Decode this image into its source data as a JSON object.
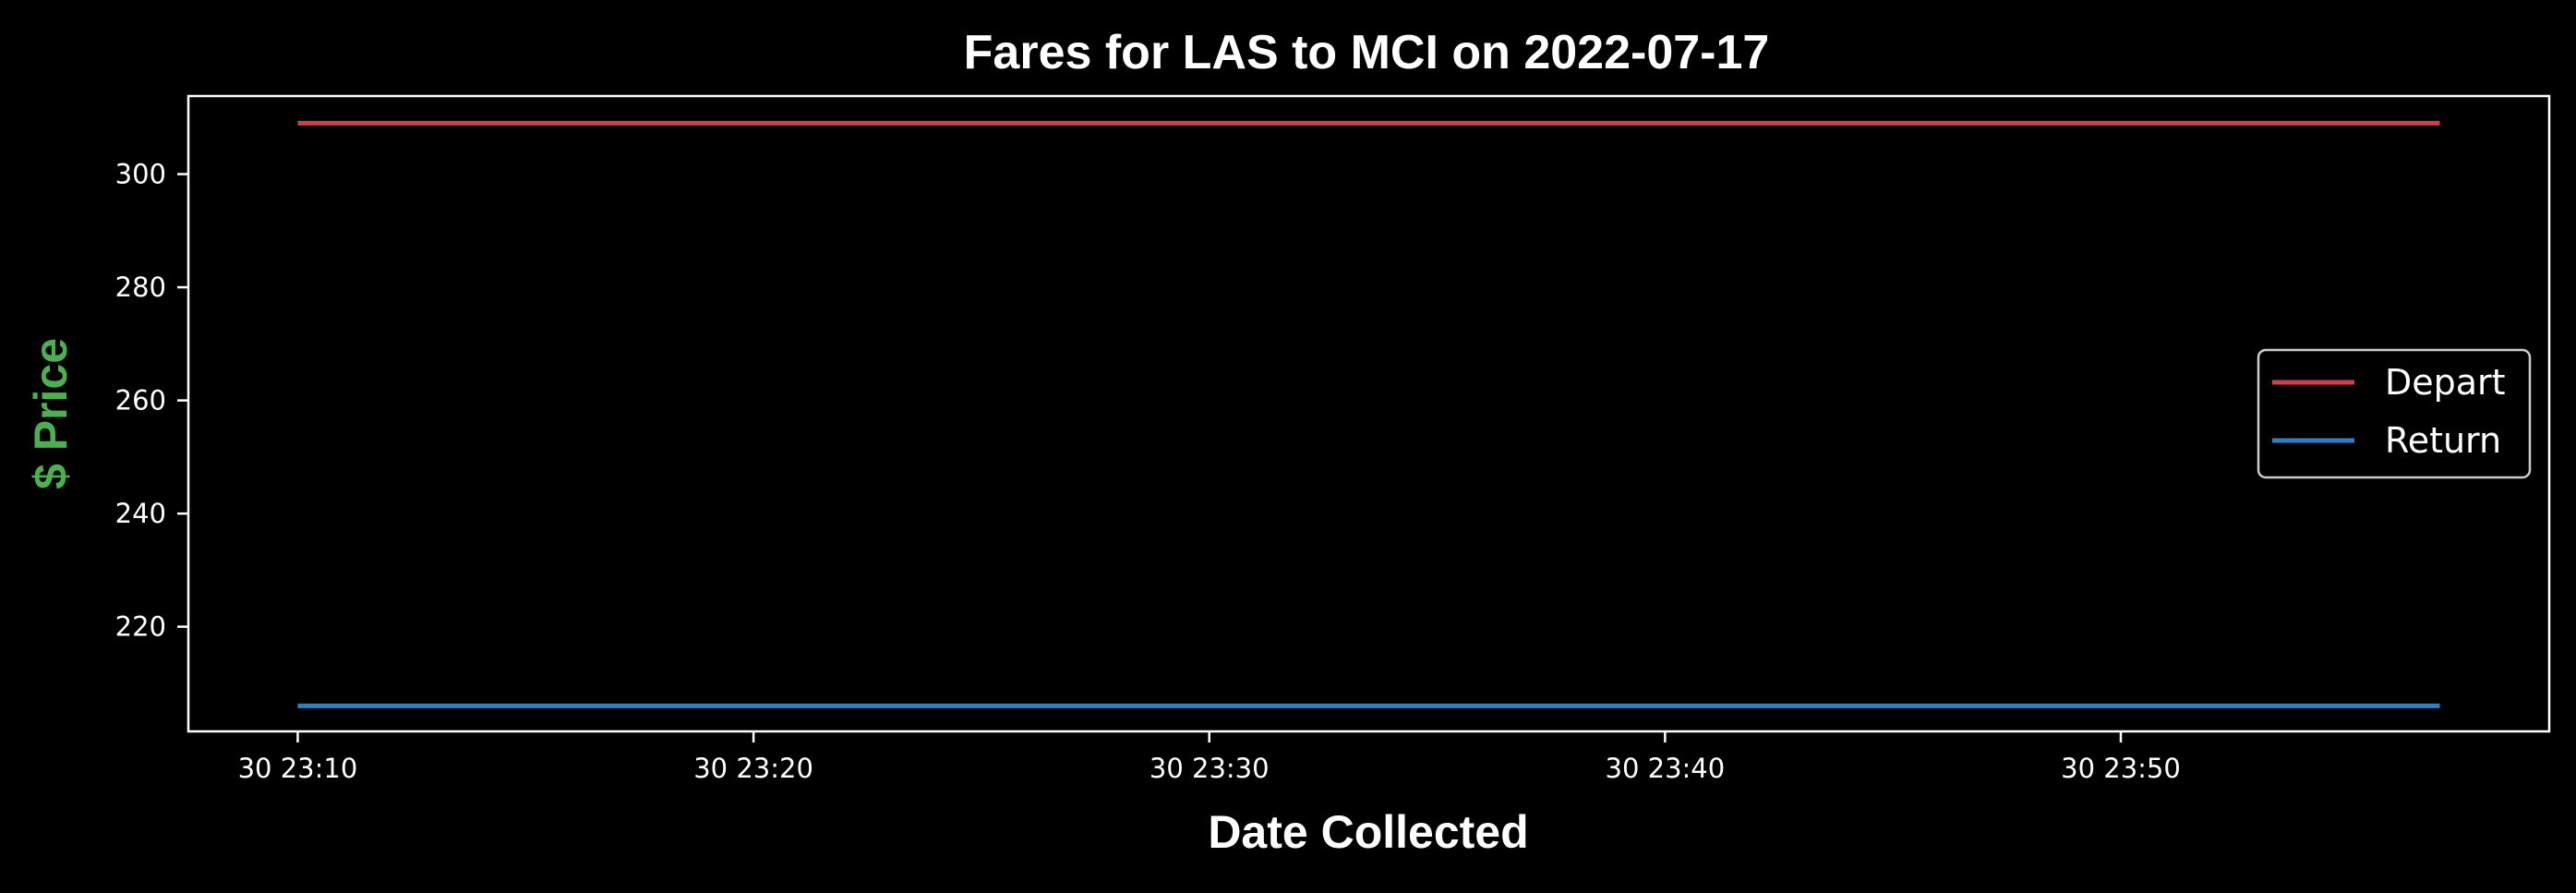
{
  "chart_data": {
    "type": "line",
    "title": "Fares for LAS to MCI on 2022-07-17",
    "xlabel": "Date Collected",
    "ylabel": "$ Price",
    "x_ticks": [
      "30 23:10",
      "30 23:20",
      "30 23:30",
      "30 23:40",
      "30 23:50"
    ],
    "x": [
      "30 23:10",
      "30 23:57"
    ],
    "xlim": [
      "30 23:07:36",
      "30 23:59:24"
    ],
    "y_ticks": [
      220,
      240,
      260,
      280,
      300
    ],
    "ylim": [
      201.5,
      313.8
    ],
    "grid": false,
    "legend_position": "center-right",
    "background_color": "#000000",
    "axis_color": "#ffffff",
    "ylabel_color": "#4caf50",
    "series": [
      {
        "name": "Depart",
        "color": "#d03f4f",
        "values": [
          309,
          309
        ]
      },
      {
        "name": "Return",
        "color": "#2f7fc4",
        "values": [
          206,
          206
        ]
      }
    ]
  }
}
